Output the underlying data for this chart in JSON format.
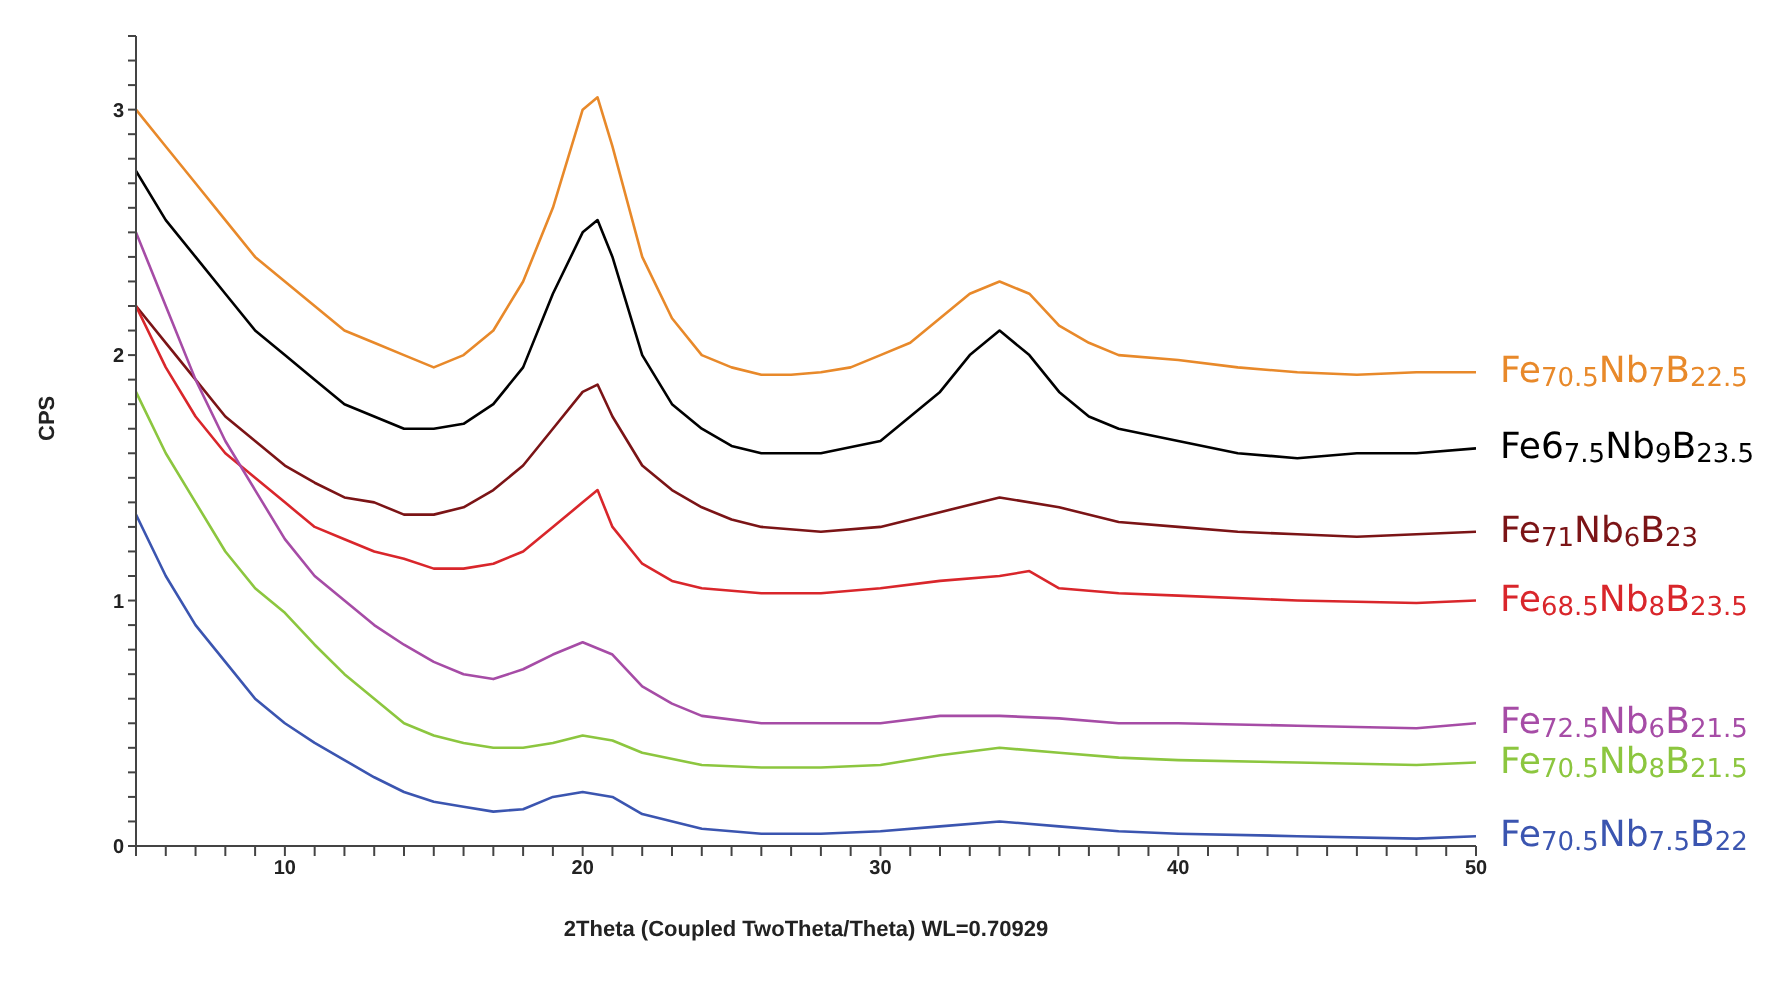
{
  "chart_data": {
    "type": "line",
    "xlabel": "2Theta (Coupled TwoTheta/Theta) WL=0.70929",
    "ylabel": "CPS",
    "legend": false,
    "grid": false,
    "marker": "none",
    "line_style": "solid",
    "xlim": [
      5,
      50
    ],
    "ylim": [
      0,
      3.3
    ],
    "xticks": [
      {
        "value": 5,
        "label": null
      },
      {
        "value": 6,
        "label": null
      },
      {
        "value": 7,
        "label": null
      },
      {
        "value": 8,
        "label": null
      },
      {
        "value": 9,
        "label": null
      },
      10,
      {
        "value": 11,
        "label": null
      },
      {
        "value": 12,
        "label": null
      },
      {
        "value": 13,
        "label": null
      },
      {
        "value": 14,
        "label": null
      },
      {
        "value": 15,
        "label": null
      },
      {
        "value": 16,
        "label": null
      },
      {
        "value": 17,
        "label": null
      },
      {
        "value": 18,
        "label": null
      },
      {
        "value": 19,
        "label": null
      },
      20,
      {
        "value": 21,
        "label": null
      },
      {
        "value": 22,
        "label": null
      },
      {
        "value": 23,
        "label": null
      },
      {
        "value": 24,
        "label": null
      },
      {
        "value": 25,
        "label": null
      },
      {
        "value": 26,
        "label": null
      },
      {
        "value": 27,
        "label": null
      },
      {
        "value": 28,
        "label": null
      },
      {
        "value": 29,
        "label": null
      },
      30,
      {
        "value": 31,
        "label": null
      },
      {
        "value": 32,
        "label": null
      },
      {
        "value": 33,
        "label": null
      },
      {
        "value": 34,
        "label": null
      },
      {
        "value": 35,
        "label": null
      },
      {
        "value": 36,
        "label": null
      },
      {
        "value": 37,
        "label": null
      },
      {
        "value": 38,
        "label": null
      },
      {
        "value": 39,
        "label": null
      },
      40,
      {
        "value": 41,
        "label": null
      },
      {
        "value": 42,
        "label": null
      },
      {
        "value": 43,
        "label": null
      },
      {
        "value": 44,
        "label": null
      },
      {
        "value": 45,
        "label": null
      },
      {
        "value": 46,
        "label": null
      },
      {
        "value": 47,
        "label": null
      },
      {
        "value": 48,
        "label": null
      },
      {
        "value": 49,
        "label": null
      },
      50
    ],
    "yticks": [
      0,
      {
        "value": 0.1,
        "label": null
      },
      {
        "value": 0.2,
        "label": null
      },
      {
        "value": 0.3,
        "label": null
      },
      {
        "value": 0.4,
        "label": null
      },
      {
        "value": 0.5,
        "label": null
      },
      {
        "value": 0.6,
        "label": null
      },
      {
        "value": 0.7,
        "label": null
      },
      {
        "value": 0.8,
        "label": null
      },
      {
        "value": 0.9,
        "label": null
      },
      1,
      {
        "value": 1.1,
        "label": null
      },
      {
        "value": 1.2,
        "label": null
      },
      {
        "value": 1.3,
        "label": null
      },
      {
        "value": 1.4,
        "label": null
      },
      {
        "value": 1.5,
        "label": null
      },
      {
        "value": 1.6,
        "label": null
      },
      {
        "value": 1.7,
        "label": null
      },
      {
        "value": 1.8,
        "label": null
      },
      {
        "value": 1.9,
        "label": null
      },
      2,
      {
        "value": 2.1,
        "label": null
      },
      {
        "value": 2.2,
        "label": null
      },
      {
        "value": 2.3,
        "label": null
      },
      {
        "value": 2.4,
        "label": null
      },
      {
        "value": 2.5,
        "label": null
      },
      {
        "value": 2.6,
        "label": null
      },
      {
        "value": 2.7,
        "label": null
      },
      {
        "value": 2.8,
        "label": null
      },
      {
        "value": 2.9,
        "label": null
      },
      3,
      {
        "value": 3.1,
        "label": null
      },
      {
        "value": 3.2,
        "label": null
      },
      {
        "value": 3.3,
        "label": null
      }
    ],
    "series": [
      {
        "name": "Fe$_{70.5}$Nb$_{7}$B$_{22.5}$",
        "color": "#e8892a",
        "x": [
          5,
          6,
          7,
          8,
          9,
          10,
          11,
          12,
          13,
          14,
          15,
          16,
          17,
          18,
          19,
          20,
          20.5,
          21,
          22,
          23,
          24,
          25,
          26,
          27,
          28,
          29,
          30,
          31,
          32,
          33,
          34,
          35,
          36,
          37,
          38,
          40,
          42,
          44,
          46,
          48,
          50
        ],
        "values": [
          3.0,
          2.85,
          2.7,
          2.55,
          2.4,
          2.3,
          2.2,
          2.1,
          2.05,
          2.0,
          1.95,
          2.0,
          2.1,
          2.3,
          2.6,
          3.0,
          3.05,
          2.85,
          2.4,
          2.15,
          2.0,
          1.95,
          1.92,
          1.92,
          1.93,
          1.95,
          2.0,
          2.05,
          2.15,
          2.25,
          2.3,
          2.25,
          2.12,
          2.05,
          2.0,
          1.98,
          1.95,
          1.93,
          1.92,
          1.93,
          1.93
        ]
      },
      {
        "name": "Fe6$_{7.5}$Nb$_{9}$B$_{23.5}$",
        "color": "#000000",
        "x": [
          5,
          6,
          7,
          8,
          9,
          10,
          11,
          12,
          13,
          14,
          15,
          16,
          17,
          18,
          19,
          20,
          20.5,
          21,
          22,
          23,
          24,
          25,
          26,
          28,
          30,
          31,
          32,
          33,
          34,
          35,
          36,
          37,
          38,
          40,
          42,
          44,
          46,
          48,
          50
        ],
        "values": [
          2.75,
          2.55,
          2.4,
          2.25,
          2.1,
          2.0,
          1.9,
          1.8,
          1.75,
          1.7,
          1.7,
          1.72,
          1.8,
          1.95,
          2.25,
          2.5,
          2.55,
          2.4,
          2.0,
          1.8,
          1.7,
          1.63,
          1.6,
          1.6,
          1.65,
          1.75,
          1.85,
          2.0,
          2.1,
          2.0,
          1.85,
          1.75,
          1.7,
          1.65,
          1.6,
          1.58,
          1.6,
          1.6,
          1.62
        ]
      },
      {
        "name": "Fe$_{71}$Nb$_{6}$B$_{23}$",
        "color": "#7b1416",
        "x": [
          5,
          6,
          7,
          8,
          9,
          10,
          11,
          12,
          13,
          14,
          15,
          16,
          17,
          18,
          19,
          20,
          20.5,
          21,
          22,
          23,
          24,
          25,
          26,
          28,
          30,
          32,
          34,
          36,
          38,
          40,
          42,
          44,
          46,
          48,
          50
        ],
        "values": [
          2.2,
          2.05,
          1.9,
          1.75,
          1.65,
          1.55,
          1.48,
          1.42,
          1.4,
          1.35,
          1.35,
          1.38,
          1.45,
          1.55,
          1.7,
          1.85,
          1.88,
          1.75,
          1.55,
          1.45,
          1.38,
          1.33,
          1.3,
          1.28,
          1.3,
          1.36,
          1.42,
          1.38,
          1.32,
          1.3,
          1.28,
          1.27,
          1.26,
          1.27,
          1.28
        ]
      },
      {
        "name": "Fe$_{68.5}$Nb$_{8}$B$_{23.5}$",
        "color": "#d9262b",
        "x": [
          5,
          6,
          7,
          8,
          9,
          10,
          11,
          12,
          13,
          14,
          15,
          16,
          17,
          18,
          19,
          20,
          20.5,
          21,
          22,
          23,
          24,
          26,
          28,
          30,
          32,
          34,
          35,
          36,
          38,
          40,
          44,
          48,
          50
        ],
        "values": [
          2.2,
          1.95,
          1.75,
          1.6,
          1.5,
          1.4,
          1.3,
          1.25,
          1.2,
          1.17,
          1.13,
          1.13,
          1.15,
          1.2,
          1.3,
          1.4,
          1.45,
          1.3,
          1.15,
          1.08,
          1.05,
          1.03,
          1.03,
          1.05,
          1.08,
          1.1,
          1.12,
          1.05,
          1.03,
          1.02,
          1.0,
          0.99,
          1.0
        ]
      },
      {
        "name": "Fe$_{72.5}$Nb$_{6}$B$_{21.5}$",
        "color": "#a64ca6",
        "x": [
          5,
          6,
          7,
          8,
          9,
          10,
          11,
          12,
          13,
          14,
          15,
          16,
          17,
          18,
          19,
          20,
          21,
          22,
          23,
          24,
          26,
          28,
          30,
          32,
          34,
          36,
          38,
          40,
          44,
          48,
          50
        ],
        "values": [
          2.5,
          2.2,
          1.9,
          1.65,
          1.45,
          1.25,
          1.1,
          1.0,
          0.9,
          0.82,
          0.75,
          0.7,
          0.68,
          0.72,
          0.78,
          0.83,
          0.78,
          0.65,
          0.58,
          0.53,
          0.5,
          0.5,
          0.5,
          0.53,
          0.53,
          0.52,
          0.5,
          0.5,
          0.49,
          0.48,
          0.5
        ]
      },
      {
        "name": "Fe$_{70.5}$Nb$_{8}$B$_{21.5}$",
        "color": "#8cc63f",
        "x": [
          5,
          6,
          7,
          8,
          9,
          10,
          11,
          12,
          13,
          14,
          15,
          16,
          17,
          18,
          19,
          20,
          21,
          22,
          24,
          26,
          28,
          30,
          32,
          34,
          36,
          38,
          40,
          44,
          48,
          50
        ],
        "values": [
          1.85,
          1.6,
          1.4,
          1.2,
          1.05,
          0.95,
          0.82,
          0.7,
          0.6,
          0.5,
          0.45,
          0.42,
          0.4,
          0.4,
          0.42,
          0.45,
          0.43,
          0.38,
          0.33,
          0.32,
          0.32,
          0.33,
          0.37,
          0.4,
          0.38,
          0.36,
          0.35,
          0.34,
          0.33,
          0.34
        ]
      },
      {
        "name": "Fe$_{70.5}$Nb$_{7.5}$B$_{22}$",
        "color": "#3b55b0",
        "x": [
          5,
          6,
          7,
          8,
          9,
          10,
          11,
          12,
          13,
          14,
          15,
          16,
          17,
          18,
          19,
          20,
          21,
          22,
          24,
          26,
          28,
          30,
          32,
          34,
          36,
          38,
          40,
          44,
          48,
          50
        ],
        "values": [
          1.35,
          1.1,
          0.9,
          0.75,
          0.6,
          0.5,
          0.42,
          0.35,
          0.28,
          0.22,
          0.18,
          0.16,
          0.14,
          0.15,
          0.2,
          0.22,
          0.2,
          0.13,
          0.07,
          0.05,
          0.05,
          0.06,
          0.08,
          0.1,
          0.08,
          0.06,
          0.05,
          0.04,
          0.03,
          0.04
        ]
      }
    ]
  }
}
